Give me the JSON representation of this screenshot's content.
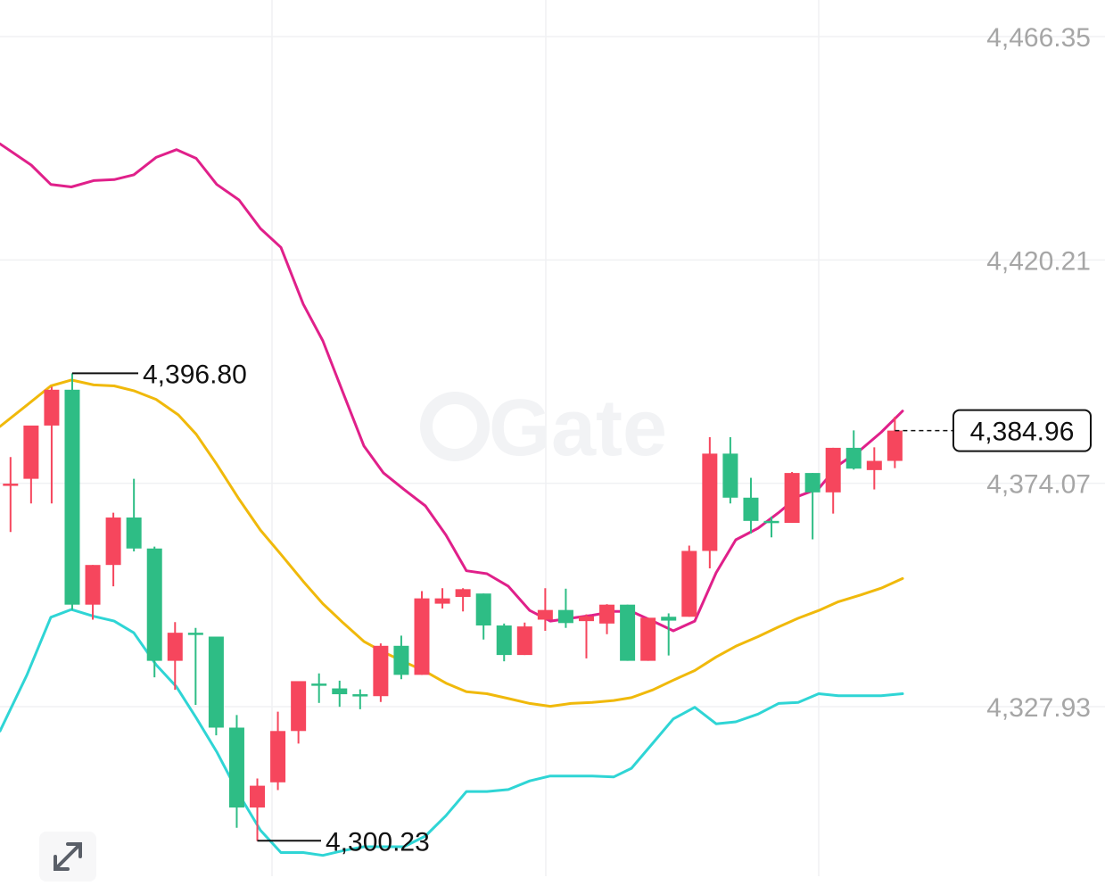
{
  "chart_data": {
    "type": "candlestick",
    "y_axis_labels": [
      "4,466.35",
      "4,420.21",
      "4,374.07",
      "4,327.93"
    ],
    "y_axis_values": [
      4466.35,
      4420.21,
      4374.07,
      4327.93
    ],
    "ylim": [
      4296.0,
      4471.0
    ],
    "grid": true,
    "annotations": [
      {
        "name": "high-marker",
        "text": "4,396.80",
        "value": 4396.8,
        "candle_index": 3
      },
      {
        "name": "low-marker",
        "text": "4,300.23",
        "value": 4300.23,
        "candle_index": 12
      }
    ],
    "current_price": {
      "text": "4,384.96",
      "value": 4384.96
    },
    "up_color": "#2ebd85",
    "down_color": "#f6465d",
    "candles": [
      {
        "o": 4373.8,
        "h": 4379.5,
        "l": 4364.0,
        "c": 4374.0,
        "color": "down"
      },
      {
        "o": 4375.0,
        "h": 4386.0,
        "l": 4369.9,
        "c": 4386.0,
        "color": "down"
      },
      {
        "o": 4386.0,
        "h": 4394.0,
        "l": 4369.9,
        "c": 4393.4,
        "color": "down"
      },
      {
        "o": 4393.4,
        "h": 4396.8,
        "l": 4347.9,
        "c": 4349.0,
        "color": "up"
      },
      {
        "o": 4349.0,
        "h": 4357.2,
        "l": 4345.9,
        "c": 4357.2,
        "color": "down"
      },
      {
        "o": 4357.2,
        "h": 4368.0,
        "l": 4352.8,
        "c": 4367.0,
        "color": "down"
      },
      {
        "o": 4367.0,
        "h": 4375.0,
        "l": 4360.0,
        "c": 4360.6,
        "color": "up"
      },
      {
        "o": 4360.6,
        "h": 4361.0,
        "l": 4334.0,
        "c": 4337.4,
        "color": "up"
      },
      {
        "o": 4337.4,
        "h": 4345.4,
        "l": 4331.4,
        "c": 4343.2,
        "color": "down"
      },
      {
        "o": 4343.2,
        "h": 4344.2,
        "l": 4328.3,
        "c": 4342.8,
        "color": "up"
      },
      {
        "o": 4342.4,
        "h": 4342.4,
        "l": 4322.0,
        "c": 4323.6,
        "color": "up"
      },
      {
        "o": 4323.6,
        "h": 4326.2,
        "l": 4302.9,
        "c": 4307.1,
        "color": "up"
      },
      {
        "o": 4307.1,
        "h": 4313.1,
        "l": 4300.2,
        "c": 4311.6,
        "color": "down"
      },
      {
        "o": 4312.3,
        "h": 4326.9,
        "l": 4310.7,
        "c": 4322.9,
        "color": "down"
      },
      {
        "o": 4322.9,
        "h": 4333.0,
        "l": 4320.3,
        "c": 4333.2,
        "color": "down"
      },
      {
        "o": 4332.7,
        "h": 4334.8,
        "l": 4328.7,
        "c": 4332.7,
        "color": "up"
      },
      {
        "o": 4331.7,
        "h": 4333.3,
        "l": 4327.9,
        "c": 4330.5,
        "color": "up"
      },
      {
        "o": 4330.5,
        "h": 4331.5,
        "l": 4327.4,
        "c": 4330.1,
        "color": "up"
      },
      {
        "o": 4330.1,
        "h": 4341.0,
        "l": 4328.9,
        "c": 4340.5,
        "color": "down"
      },
      {
        "o": 4340.5,
        "h": 4342.6,
        "l": 4333.6,
        "c": 4334.5,
        "color": "up"
      },
      {
        "o": 4334.5,
        "h": 4351.8,
        "l": 4334.5,
        "c": 4350.3,
        "color": "down"
      },
      {
        "o": 4350.3,
        "h": 4352.4,
        "l": 4348.2,
        "c": 4349.2,
        "color": "down"
      },
      {
        "o": 4350.6,
        "h": 4352.4,
        "l": 4347.6,
        "c": 4352.2,
        "color": "down"
      },
      {
        "o": 4351.3,
        "h": 4351.3,
        "l": 4341.8,
        "c": 4344.7,
        "color": "up"
      },
      {
        "o": 4344.7,
        "h": 4345.1,
        "l": 4337.3,
        "c": 4338.6,
        "color": "up"
      },
      {
        "o": 4338.6,
        "h": 4345.3,
        "l": 4338.6,
        "c": 4344.5,
        "color": "down"
      },
      {
        "o": 4345.9,
        "h": 4352.4,
        "l": 4343.6,
        "c": 4347.9,
        "color": "down"
      },
      {
        "o": 4347.9,
        "h": 4352.3,
        "l": 4344.2,
        "c": 4345.2,
        "color": "up"
      },
      {
        "o": 4345.6,
        "h": 4347.0,
        "l": 4337.9,
        "c": 4346.6,
        "color": "down"
      },
      {
        "o": 4345.1,
        "h": 4349.1,
        "l": 4342.9,
        "c": 4349.0,
        "color": "down"
      },
      {
        "o": 4349.0,
        "h": 4349.0,
        "l": 4337.4,
        "c": 4337.4,
        "color": "up"
      },
      {
        "o": 4337.4,
        "h": 4346.3,
        "l": 4337.4,
        "c": 4346.3,
        "color": "down"
      },
      {
        "o": 4345.7,
        "h": 4347.2,
        "l": 4338.5,
        "c": 4346.5,
        "color": "up"
      },
      {
        "o": 4346.5,
        "h": 4361.2,
        "l": 4346.5,
        "c": 4360.1,
        "color": "down"
      },
      {
        "o": 4360.1,
        "h": 4383.6,
        "l": 4356.5,
        "c": 4380.2,
        "color": "down"
      },
      {
        "o": 4380.2,
        "h": 4383.6,
        "l": 4369.9,
        "c": 4371.1,
        "color": "up"
      },
      {
        "o": 4371.1,
        "h": 4375.2,
        "l": 4363.7,
        "c": 4366.3,
        "color": "up"
      },
      {
        "o": 4366.3,
        "h": 4367.2,
        "l": 4362.9,
        "c": 4365.9,
        "color": "up"
      },
      {
        "o": 4365.9,
        "h": 4376.4,
        "l": 4365.9,
        "c": 4376.2,
        "color": "down"
      },
      {
        "o": 4376.2,
        "h": 4376.2,
        "l": 4362.5,
        "c": 4372.2,
        "color": "up"
      },
      {
        "o": 4372.2,
        "h": 4381.4,
        "l": 4367.8,
        "c": 4381.4,
        "color": "down"
      },
      {
        "o": 4381.4,
        "h": 4385.0,
        "l": 4376.9,
        "c": 4377.1,
        "color": "up"
      },
      {
        "o": 4376.8,
        "h": 4381.5,
        "l": 4372.8,
        "c": 4378.7,
        "color": "down"
      },
      {
        "o": 4378.7,
        "h": 4387.8,
        "l": 4377.2,
        "c": 4384.96,
        "color": "down"
      }
    ],
    "bands": {
      "upper": [
        {
          "x": 0,
          "v": 4444.2
        },
        {
          "x": 35,
          "v": 4439.8
        },
        {
          "x": 57,
          "v": 4435.8
        },
        {
          "x": 80,
          "v": 4435.3
        },
        {
          "x": 105,
          "v": 4436.6
        },
        {
          "x": 128,
          "v": 4436.8
        },
        {
          "x": 150,
          "v": 4437.8
        },
        {
          "x": 175,
          "v": 4441.4
        },
        {
          "x": 198,
          "v": 4443.0
        },
        {
          "x": 220,
          "v": 4441.2
        },
        {
          "x": 243,
          "v": 4435.8
        },
        {
          "x": 268,
          "v": 4432.6
        },
        {
          "x": 292,
          "v": 4426.7
        },
        {
          "x": 315,
          "v": 4422.8
        },
        {
          "x": 340,
          "v": 4411.1
        },
        {
          "x": 362,
          "v": 4403.5
        },
        {
          "x": 385,
          "v": 4392.6
        },
        {
          "x": 408,
          "v": 4381.8
        },
        {
          "x": 430,
          "v": 4376.2
        },
        {
          "x": 453,
          "v": 4372.8
        },
        {
          "x": 477,
          "v": 4369.4
        },
        {
          "x": 500,
          "v": 4363.4
        },
        {
          "x": 523,
          "v": 4356.0
        },
        {
          "x": 546,
          "v": 4355.4
        },
        {
          "x": 570,
          "v": 4352.8
        },
        {
          "x": 594,
          "v": 4347.8
        },
        {
          "x": 617,
          "v": 4345.6
        },
        {
          "x": 640,
          "v": 4346.2
        },
        {
          "x": 664,
          "v": 4346.8
        },
        {
          "x": 688,
          "v": 4347.6
        },
        {
          "x": 708,
          "v": 4347.6
        },
        {
          "x": 732,
          "v": 4345.6
        },
        {
          "x": 755,
          "v": 4343.6
        },
        {
          "x": 779,
          "v": 4345.6
        },
        {
          "x": 803,
          "v": 4355.6
        },
        {
          "x": 825,
          "v": 4362.4
        },
        {
          "x": 850,
          "v": 4364.8
        },
        {
          "x": 873,
          "v": 4368.0
        },
        {
          "x": 895,
          "v": 4371.4
        },
        {
          "x": 918,
          "v": 4373.0
        },
        {
          "x": 940,
          "v": 4377.8
        },
        {
          "x": 965,
          "v": 4381.0
        },
        {
          "x": 988,
          "v": 4384.6
        },
        {
          "x": 1012,
          "v": 4389.0
        }
      ],
      "middle": [
        {
          "x": 0,
          "v": 4385.8
        },
        {
          "x": 30,
          "v": 4390.2
        },
        {
          "x": 57,
          "v": 4394.2
        },
        {
          "x": 80,
          "v": 4395.4
        },
        {
          "x": 105,
          "v": 4394.4
        },
        {
          "x": 128,
          "v": 4394.2
        },
        {
          "x": 150,
          "v": 4393.2
        },
        {
          "x": 175,
          "v": 4391.4
        },
        {
          "x": 200,
          "v": 4388.2
        },
        {
          "x": 220,
          "v": 4384.2
        },
        {
          "x": 243,
          "v": 4378.0
        },
        {
          "x": 268,
          "v": 4370.8
        },
        {
          "x": 292,
          "v": 4364.4
        },
        {
          "x": 315,
          "v": 4359.4
        },
        {
          "x": 340,
          "v": 4353.8
        },
        {
          "x": 362,
          "v": 4349.2
        },
        {
          "x": 385,
          "v": 4345.2
        },
        {
          "x": 408,
          "v": 4341.4
        },
        {
          "x": 430,
          "v": 4339.2
        },
        {
          "x": 453,
          "v": 4337.2
        },
        {
          "x": 477,
          "v": 4335.2
        },
        {
          "x": 500,
          "v": 4332.8
        },
        {
          "x": 523,
          "v": 4331.0
        },
        {
          "x": 546,
          "v": 4330.6
        },
        {
          "x": 570,
          "v": 4329.6
        },
        {
          "x": 594,
          "v": 4328.6
        },
        {
          "x": 617,
          "v": 4328.0
        },
        {
          "x": 640,
          "v": 4328.6
        },
        {
          "x": 664,
          "v": 4328.8
        },
        {
          "x": 688,
          "v": 4329.2
        },
        {
          "x": 708,
          "v": 4329.8
        },
        {
          "x": 732,
          "v": 4331.4
        },
        {
          "x": 755,
          "v": 4333.4
        },
        {
          "x": 779,
          "v": 4335.4
        },
        {
          "x": 803,
          "v": 4338.2
        },
        {
          "x": 825,
          "v": 4340.4
        },
        {
          "x": 850,
          "v": 4342.4
        },
        {
          "x": 873,
          "v": 4344.4
        },
        {
          "x": 895,
          "v": 4346.2
        },
        {
          "x": 918,
          "v": 4347.8
        },
        {
          "x": 940,
          "v": 4349.6
        },
        {
          "x": 965,
          "v": 4351.0
        },
        {
          "x": 988,
          "v": 4352.4
        },
        {
          "x": 1012,
          "v": 4354.4
        }
      ],
      "lower": [
        {
          "x": 0,
          "v": 4322.9
        },
        {
          "x": 30,
          "v": 4334.4
        },
        {
          "x": 57,
          "v": 4346.4
        },
        {
          "x": 80,
          "v": 4348.0
        },
        {
          "x": 105,
          "v": 4346.6
        },
        {
          "x": 128,
          "v": 4345.6
        },
        {
          "x": 150,
          "v": 4343.2
        },
        {
          "x": 175,
          "v": 4336.6
        },
        {
          "x": 198,
          "v": 4332.0
        },
        {
          "x": 220,
          "v": 4325.6
        },
        {
          "x": 243,
          "v": 4318.6
        },
        {
          "x": 268,
          "v": 4309.8
        },
        {
          "x": 292,
          "v": 4302.4
        },
        {
          "x": 315,
          "v": 4297.8
        },
        {
          "x": 340,
          "v": 4297.8
        },
        {
          "x": 362,
          "v": 4297.2
        },
        {
          "x": 385,
          "v": 4298.2
        },
        {
          "x": 408,
          "v": 4299.0
        },
        {
          "x": 430,
          "v": 4299.0
        },
        {
          "x": 453,
          "v": 4299.0
        },
        {
          "x": 477,
          "v": 4301.2
        },
        {
          "x": 500,
          "v": 4305.4
        },
        {
          "x": 523,
          "v": 4310.4
        },
        {
          "x": 546,
          "v": 4310.4
        },
        {
          "x": 570,
          "v": 4310.8
        },
        {
          "x": 594,
          "v": 4312.6
        },
        {
          "x": 617,
          "v": 4313.6
        },
        {
          "x": 640,
          "v": 4313.6
        },
        {
          "x": 664,
          "v": 4313.6
        },
        {
          "x": 688,
          "v": 4313.4
        },
        {
          "x": 708,
          "v": 4315.2
        },
        {
          "x": 732,
          "v": 4320.4
        },
        {
          "x": 755,
          "v": 4325.4
        },
        {
          "x": 779,
          "v": 4327.8
        },
        {
          "x": 803,
          "v": 4324.4
        },
        {
          "x": 825,
          "v": 4324.8
        },
        {
          "x": 850,
          "v": 4326.4
        },
        {
          "x": 873,
          "v": 4328.6
        },
        {
          "x": 895,
          "v": 4328.8
        },
        {
          "x": 918,
          "v": 4330.6
        },
        {
          "x": 940,
          "v": 4330.2
        },
        {
          "x": 965,
          "v": 4330.2
        },
        {
          "x": 988,
          "v": 4330.2
        },
        {
          "x": 1012,
          "v": 4330.6
        }
      ]
    },
    "band_colors": {
      "upper": "#e0208a",
      "middle": "#f0b90b",
      "lower": "#2fd5d5"
    }
  },
  "watermark": "Gate",
  "expand_icon": "expand-arrows-icon"
}
